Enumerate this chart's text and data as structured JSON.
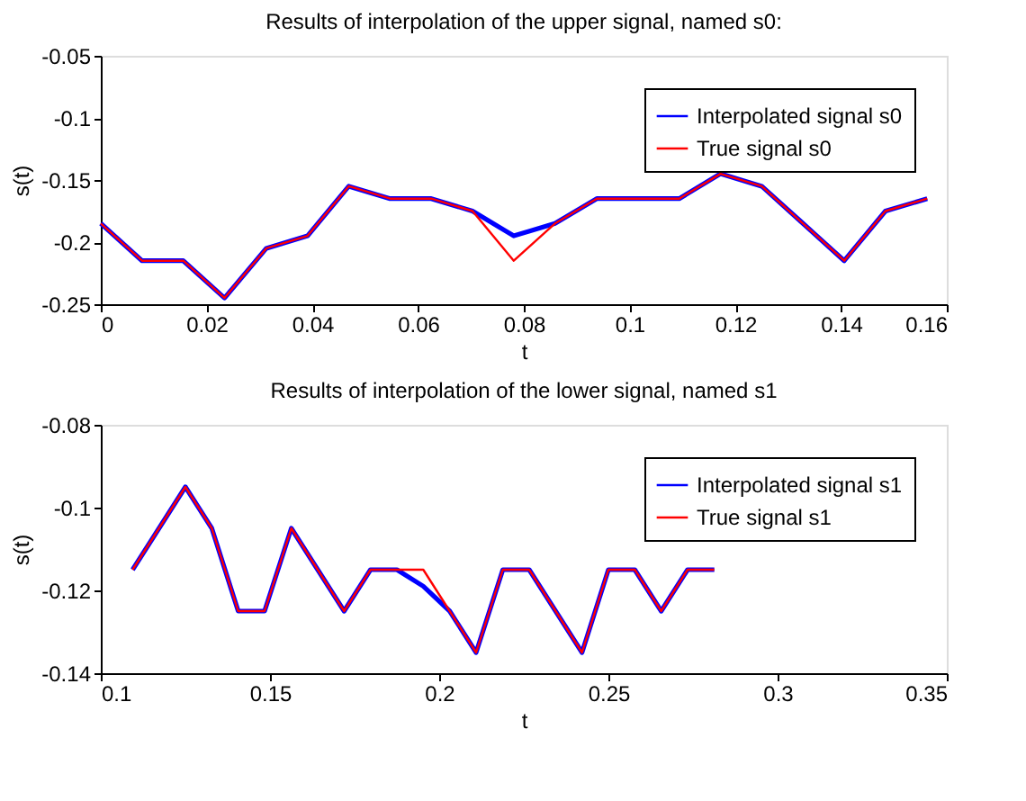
{
  "chart_data": [
    {
      "type": "line",
      "title": "Results of interpolation of the upper signal, named s0:",
      "xlabel": "t",
      "ylabel": "s(t)",
      "x": [
        0,
        0.0078,
        0.0156,
        0.0234,
        0.0313,
        0.0391,
        0.0469,
        0.0547,
        0.0625,
        0.0703,
        0.0781,
        0.0859,
        0.0938,
        0.1016,
        0.1094,
        0.1172,
        0.125,
        0.1328,
        0.1406,
        0.1484,
        0.1563
      ],
      "series": [
        {
          "name": "Interpolated signal s0",
          "color": "#0000ff",
          "values": [
            -0.185,
            -0.215,
            -0.215,
            -0.245,
            -0.205,
            -0.195,
            -0.155,
            -0.165,
            -0.165,
            -0.175,
            -0.195,
            -0.185,
            -0.165,
            -0.165,
            -0.165,
            -0.145,
            -0.155,
            -0.185,
            -0.215,
            -0.175,
            -0.165
          ]
        },
        {
          "name": "True signal s0",
          "color": "#ff0000",
          "values": [
            -0.185,
            -0.215,
            -0.215,
            -0.245,
            -0.205,
            -0.195,
            -0.155,
            -0.165,
            -0.165,
            -0.175,
            -0.215,
            -0.185,
            -0.165,
            -0.165,
            -0.165,
            -0.145,
            -0.155,
            -0.185,
            -0.215,
            -0.175,
            -0.165
          ]
        }
      ],
      "xlim": [
        0,
        0.16
      ],
      "xticks": [
        0,
        0.02,
        0.04,
        0.06,
        0.08,
        0.1,
        0.12,
        0.14,
        0.16
      ],
      "ylim": [
        -0.25,
        -0.05
      ],
      "yticks": [
        -0.25,
        -0.2,
        -0.15,
        -0.1,
        -0.05
      ],
      "grid": false,
      "legend": "top right"
    },
    {
      "type": "line",
      "title": "Results of interpolation of the lower signal, named s1",
      "xlabel": "t",
      "ylabel": "s(t)",
      "x": [
        0.1094,
        0.1172,
        0.125,
        0.1328,
        0.1406,
        0.1484,
        0.1563,
        0.1641,
        0.1719,
        0.1797,
        0.1875,
        0.1953,
        0.2031,
        0.2109,
        0.2188,
        0.2266,
        0.2344,
        0.2422,
        0.25,
        0.2578,
        0.2656,
        0.2734,
        0.2813
      ],
      "series": [
        {
          "name": "Interpolated signal s1",
          "color": "#0000ff",
          "values": [
            -0.115,
            -0.105,
            -0.095,
            -0.105,
            -0.125,
            -0.125,
            -0.105,
            -0.115,
            -0.125,
            -0.115,
            -0.115,
            -0.119,
            -0.125,
            -0.135,
            -0.115,
            -0.115,
            -0.125,
            -0.135,
            -0.115,
            -0.115,
            -0.125,
            -0.115,
            -0.115
          ]
        },
        {
          "name": "True signal s1",
          "color": "#ff0000",
          "values": [
            -0.115,
            -0.105,
            -0.095,
            -0.105,
            -0.125,
            -0.125,
            -0.105,
            -0.115,
            -0.125,
            -0.115,
            -0.115,
            -0.115,
            -0.125,
            -0.135,
            -0.115,
            -0.115,
            -0.125,
            -0.135,
            -0.115,
            -0.115,
            -0.125,
            -0.115,
            -0.115
          ]
        }
      ],
      "xlim": [
        0.1,
        0.35
      ],
      "xticks": [
        0.1,
        0.15,
        0.2,
        0.25,
        0.3,
        0.35
      ],
      "ylim": [
        -0.14,
        -0.08
      ],
      "yticks": [
        -0.14,
        -0.12,
        -0.1,
        -0.08
      ],
      "grid": false,
      "legend": "top right"
    }
  ]
}
